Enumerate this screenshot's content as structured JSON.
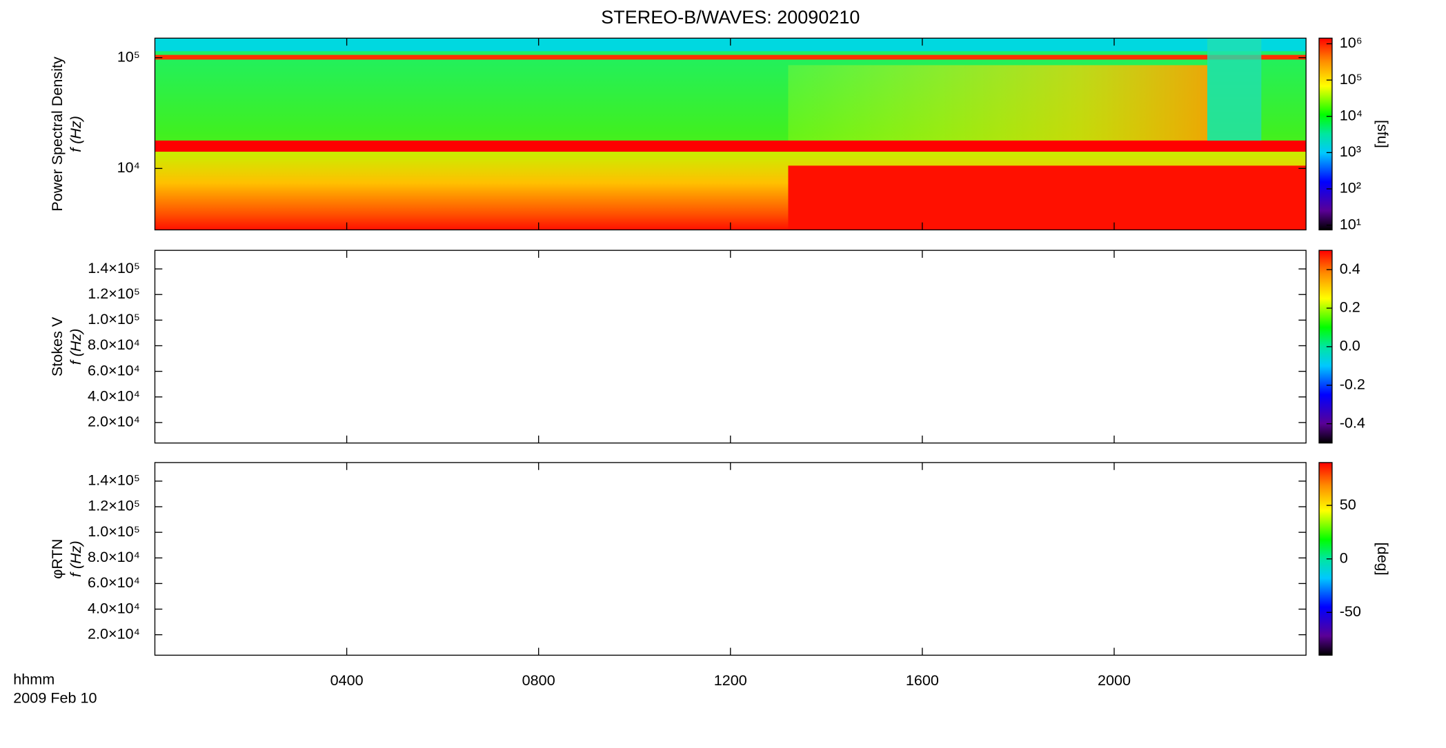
{
  "chart_data": [
    {
      "type": "spectrogram",
      "title": "STEREO-B/WAVES: 20090210",
      "ylabel": [
        "Power Spectral Density",
        "f (Hz)"
      ],
      "log_y": true,
      "ylim": [
        2790,
        150000
      ],
      "yticks": [
        {
          "value": 10000,
          "label": "10⁴"
        },
        {
          "value": 100000,
          "label": "10⁵"
        }
      ],
      "xlim": [
        0,
        24
      ],
      "colorbar": {
        "log": true,
        "lim": [
          7.4,
          1430000
        ],
        "label": "[sfu]",
        "ticks": [
          {
            "value": 10,
            "label": "10¹"
          },
          {
            "value": 100,
            "label": "10²"
          },
          {
            "value": 1000,
            "label": "10³"
          },
          {
            "value": 10000,
            "label": "10⁴"
          },
          {
            "value": 100000,
            "label": "10⁵"
          },
          {
            "value": 1000000,
            "label": "10⁶"
          }
        ]
      }
    },
    {
      "type": "spectrogram",
      "ylabel": [
        "Stokes V",
        "f (Hz)"
      ],
      "log_y": false,
      "ylim": [
        4000,
        154500
      ],
      "yticks": [
        {
          "value": 20000,
          "label": "2.0×10⁴"
        },
        {
          "value": 40000,
          "label": "4.0×10⁴"
        },
        {
          "value": 60000,
          "label": "6.0×10⁴"
        },
        {
          "value": 80000,
          "label": "8.0×10⁴"
        },
        {
          "value": 100000,
          "label": "1.0×10⁵"
        },
        {
          "value": 120000,
          "label": "1.2×10⁵"
        },
        {
          "value": 140000,
          "label": "1.4×10⁵"
        }
      ],
      "xlim": [
        0,
        24
      ],
      "colorbar": {
        "log": false,
        "lim": [
          -0.5,
          0.5
        ],
        "ticks": [
          -0.4,
          -0.2,
          {
            "value": 0,
            "label": "0.0"
          },
          0.2,
          0.4
        ]
      }
    },
    {
      "type": "spectrogram",
      "ylabel": [
        "φRTN",
        "f (Hz)"
      ],
      "log_y": false,
      "ylim": [
        4000,
        154500
      ],
      "yticks": [
        {
          "value": 20000,
          "label": "2.0×10⁴"
        },
        {
          "value": 40000,
          "label": "4.0×10⁴"
        },
        {
          "value": 60000,
          "label": "6.0×10⁴"
        },
        {
          "value": 80000,
          "label": "8.0×10⁴"
        },
        {
          "value": 100000,
          "label": "1.0×10⁵"
        },
        {
          "value": 120000,
          "label": "1.2×10⁵"
        },
        {
          "value": 140000,
          "label": "1.4×10⁵"
        }
      ],
      "xlim": [
        0,
        24
      ],
      "xlabel": [
        "hhmm",
        "2009 Feb 10"
      ],
      "xticks": [
        {
          "value": 4,
          "label": "0400"
        },
        {
          "value": 8,
          "label": "0800"
        },
        {
          "value": 12,
          "label": "1200"
        },
        {
          "value": 16,
          "label": "1600"
        },
        {
          "value": 20,
          "label": "2000"
        }
      ],
      "colorbar": {
        "log": false,
        "lim": [
          -90,
          90
        ],
        "label": "[deg]",
        "ticks": [
          -50,
          0,
          50
        ]
      }
    }
  ]
}
